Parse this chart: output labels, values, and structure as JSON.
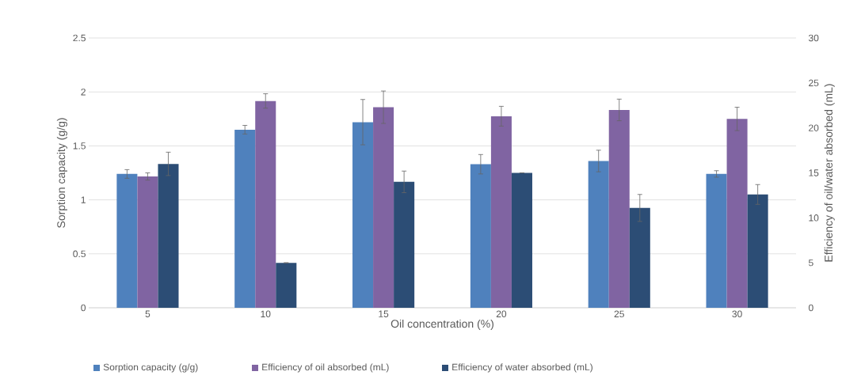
{
  "chart_data": {
    "type": "bar",
    "xlabel": "Oil concentration (%)",
    "ylabel": "Sorption capacity (g/g)",
    "y2label": "Efficiency of oil/water absorbed (mL)",
    "categories": [
      "5",
      "10",
      "15",
      "20",
      "25",
      "30"
    ],
    "series": [
      {
        "name": "Sorption capacity (g/g)",
        "color": "#4f81bd",
        "values": [
          1.24,
          1.65,
          1.72,
          1.33,
          1.36,
          1.24
        ],
        "errors": [
          0.04,
          0.04,
          0.21,
          0.09,
          0.1,
          0.03
        ]
      },
      {
        "name": "Efficiency of oil absorbed (mL)",
        "color": "#8064a2",
        "axis": "y2",
        "values": [
          14.6,
          23.0,
          22.3,
          21.3,
          22.0,
          21.0
        ],
        "errors": [
          0.4,
          0.8,
          1.8,
          1.1,
          1.2,
          1.3
        ]
      },
      {
        "name": "Efficiency of water absorbed (mL)",
        "color": "#2c4d75",
        "axis": "y2",
        "values": [
          16.0,
          5.0,
          14.0,
          15.0,
          11.1,
          12.6
        ],
        "errors": [
          1.3,
          0,
          1.2,
          0,
          1.5,
          1.1
        ]
      }
    ],
    "ylim": [
      0,
      2.5
    ],
    "yticks": [
      0,
      0.5,
      1,
      1.5,
      2,
      2.5
    ],
    "y2lim": [
      0,
      30
    ],
    "y2ticks": [
      0,
      5,
      10,
      15,
      20,
      25,
      30
    ],
    "grid": "y",
    "legend": "bottom"
  }
}
